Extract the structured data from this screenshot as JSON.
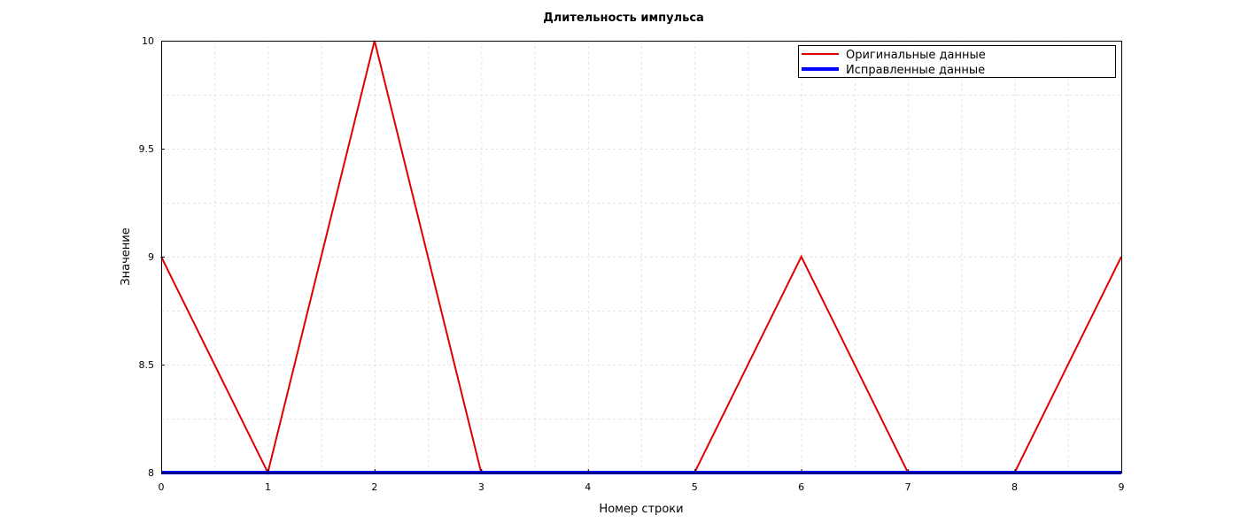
{
  "chart_data": {
    "type": "line",
    "title": "Длительность импульса",
    "xlabel": "Номер строки",
    "ylabel": "Значение",
    "x": [
      0,
      1,
      2,
      3,
      4,
      5,
      6,
      7,
      8,
      9
    ],
    "xlim": [
      0,
      9
    ],
    "ylim": [
      8,
      10
    ],
    "xticks": [
      "0",
      "1",
      "2",
      "3",
      "4",
      "5",
      "6",
      "7",
      "8",
      "9"
    ],
    "yticks": [
      "8",
      "8.5",
      "9",
      "9.5",
      "10"
    ],
    "grid": true,
    "legend_position": "top-right",
    "series": [
      {
        "name": "Оригинальные данные",
        "color": "#e00000",
        "values": [
          9,
          8,
          10,
          8,
          8,
          8,
          9,
          8,
          8,
          9
        ]
      },
      {
        "name": "Исправленные данные",
        "color": "#0000ff",
        "values": [
          8,
          8,
          8,
          8,
          8,
          8,
          8,
          8,
          8,
          8
        ]
      }
    ]
  }
}
